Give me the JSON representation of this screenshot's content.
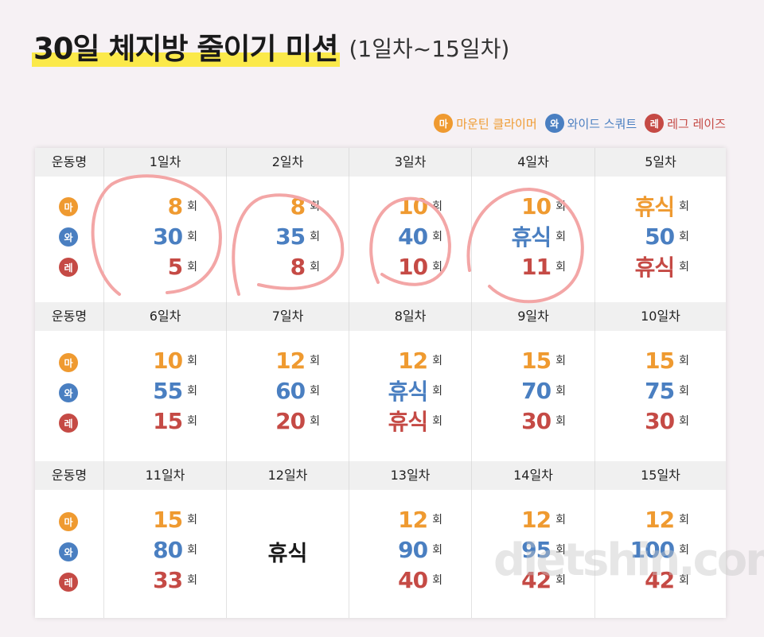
{
  "title": "30일 체지방 줄이기 미션",
  "subtitle": "(1일차~15일차)",
  "legend": [
    {
      "badge": "마",
      "label": "마운틴 클라이머",
      "key": "ma"
    },
    {
      "badge": "와",
      "label": "와이드 스쿼트",
      "key": "wa"
    },
    {
      "badge": "레",
      "label": "레그 레이즈",
      "key": "re"
    }
  ],
  "colors": {
    "ma": "#ef9a30",
    "wa": "#4a7fc1",
    "re": "#c54a45"
  },
  "row_header": "운동명",
  "badges": [
    "마",
    "와",
    "레"
  ],
  "unit": "회",
  "sections": [
    {
      "days": [
        "1일차",
        "2일차",
        "3일차",
        "4일차",
        "5일차"
      ],
      "values": [
        [
          "8",
          "30",
          "5"
        ],
        [
          "8",
          "35",
          "8"
        ],
        [
          "10",
          "40",
          "10"
        ],
        [
          "10",
          "휴식",
          "11"
        ],
        [
          "휴식",
          "50",
          "휴식"
        ]
      ]
    },
    {
      "days": [
        "6일차",
        "7일차",
        "8일차",
        "9일차",
        "10일차"
      ],
      "values": [
        [
          "10",
          "55",
          "15"
        ],
        [
          "12",
          "60",
          "20"
        ],
        [
          "12",
          "휴식",
          "휴식"
        ],
        [
          "15",
          "70",
          "30"
        ],
        [
          "15",
          "75",
          "30"
        ]
      ]
    },
    {
      "days": [
        "11일차",
        "12일차",
        "13일차",
        "14일차",
        "15일차"
      ],
      "values": [
        [
          "15",
          "80",
          "33"
        ],
        null,
        [
          "12",
          "90",
          "40"
        ],
        [
          "12",
          "95",
          "42"
        ],
        [
          "12",
          "100",
          "42"
        ]
      ],
      "rest_day_label": "휴식"
    }
  ],
  "watermark": "dietshin.com"
}
